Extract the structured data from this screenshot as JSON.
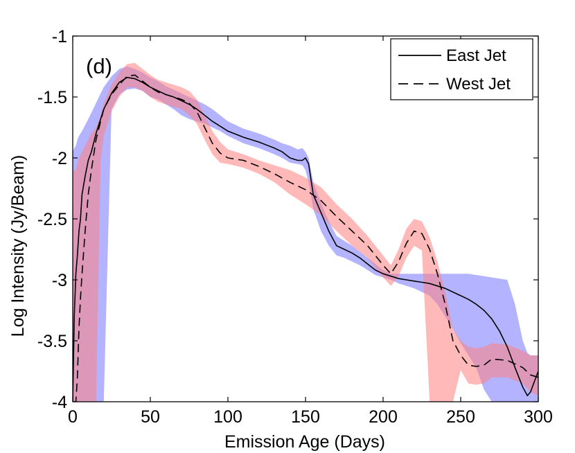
{
  "chart_data": {
    "type": "line",
    "panel_label": "(d)",
    "xlabel": "Emission Age (Days)",
    "ylabel": "Log Intensity (Jy/Beam)",
    "xlim": [
      0,
      300
    ],
    "ylim": [
      -4,
      -1
    ],
    "xticks": [
      0,
      50,
      100,
      150,
      200,
      250,
      300
    ],
    "xtick_labels": [
      "0",
      "50",
      "100",
      "150",
      "200",
      "250",
      "300"
    ],
    "yticks": [
      -4,
      -3.5,
      -3,
      -2.5,
      -2,
      -1.5,
      -1
    ],
    "ytick_labels": [
      "-4",
      "-3.5",
      "-3",
      "-2.5",
      "-2",
      "-1.5",
      "-1"
    ],
    "grid": false,
    "legend_position": "top-right",
    "series": [
      {
        "name": "East Jet",
        "line_style": "solid",
        "line_color": "#000000",
        "band_color": "#8080ff",
        "x": [
          0,
          1,
          2,
          3,
          4,
          5,
          6,
          8,
          10,
          12,
          15,
          18,
          20,
          25,
          30,
          35,
          40,
          45,
          50,
          55,
          60,
          65,
          70,
          75,
          80,
          85,
          90,
          95,
          100,
          110,
          120,
          130,
          135,
          140,
          145,
          148,
          150,
          152,
          155,
          160,
          165,
          170,
          175,
          180,
          185,
          190,
          195,
          200,
          205,
          210,
          215,
          220,
          225,
          230,
          235,
          240,
          245,
          250,
          255,
          260,
          265,
          270,
          275,
          280,
          285,
          290,
          293,
          295,
          297,
          300
        ],
        "values": [
          -4,
          -3.3,
          -2.95,
          -2.8,
          -2.6,
          -2.5,
          -2.3,
          -2.15,
          -2.02,
          -1.95,
          -1.8,
          -1.68,
          -1.6,
          -1.47,
          -1.38,
          -1.34,
          -1.35,
          -1.38,
          -1.42,
          -1.45,
          -1.48,
          -1.5,
          -1.53,
          -1.56,
          -1.6,
          -1.65,
          -1.7,
          -1.74,
          -1.78,
          -1.83,
          -1.87,
          -1.92,
          -1.95,
          -2.0,
          -2.02,
          -2.02,
          -2.0,
          -2.05,
          -2.3,
          -2.45,
          -2.6,
          -2.72,
          -2.75,
          -2.78,
          -2.82,
          -2.87,
          -2.92,
          -2.95,
          -2.97,
          -2.99,
          -3.0,
          -3.01,
          -3.02,
          -3.03,
          -3.05,
          -3.07,
          -3.1,
          -3.13,
          -3.16,
          -3.2,
          -3.25,
          -3.32,
          -3.42,
          -3.55,
          -3.72,
          -3.88,
          -3.95,
          -3.92,
          -3.85,
          -3.75
        ],
        "band_upper": [
          -1.95,
          -1.92,
          -1.9,
          -1.85,
          -1.82,
          -1.8,
          -1.78,
          -1.73,
          -1.68,
          -1.63,
          -1.55,
          -1.47,
          -1.42,
          -1.33,
          -1.27,
          -1.25,
          -1.27,
          -1.3,
          -1.34,
          -1.37,
          -1.41,
          -1.44,
          -1.47,
          -1.5,
          -1.53,
          -1.56,
          -1.6,
          -1.65,
          -1.7,
          -1.76,
          -1.8,
          -1.85,
          -1.88,
          -1.9,
          -1.93,
          -1.92,
          -1.95,
          -2.0,
          -2.2,
          -2.37,
          -2.52,
          -2.64,
          -2.68,
          -2.72,
          -2.77,
          -2.82,
          -2.87,
          -2.92,
          -2.95,
          -2.95,
          -2.95,
          -2.95,
          -2.95,
          -2.95,
          -2.95,
          -2.95,
          -2.95,
          -2.95,
          -2.95,
          -2.96,
          -2.97,
          -2.98,
          -2.99,
          -3.0,
          -3.2,
          -3.5,
          -3.6,
          -3.62,
          -3.62,
          -3.62
        ],
        "band_lower": [
          -4,
          -4,
          -4,
          -4,
          -4,
          -4,
          -4,
          -4,
          -4,
          -4,
          -4,
          -4,
          -4,
          -1.6,
          -1.48,
          -1.44,
          -1.43,
          -1.45,
          -1.5,
          -1.52,
          -1.56,
          -1.6,
          -1.65,
          -1.68,
          -1.7,
          -1.72,
          -1.75,
          -1.78,
          -1.82,
          -1.88,
          -1.92,
          -1.97,
          -2.0,
          -2.04,
          -2.05,
          -2.06,
          -2.1,
          -2.2,
          -2.42,
          -2.6,
          -2.72,
          -2.8,
          -2.82,
          -2.85,
          -2.88,
          -2.92,
          -2.96,
          -2.98,
          -3.0,
          -3.03,
          -3.05,
          -3.07,
          -3.1,
          -3.13,
          -3.2,
          -3.3,
          -3.4,
          -3.52,
          -3.62,
          -3.72,
          -3.9,
          -4,
          -4,
          -4,
          -4,
          -4,
          -4,
          -4,
          -4,
          -4
        ]
      },
      {
        "name": "West Jet",
        "line_style": "dashed",
        "line_color": "#000000",
        "band_color": "#ff8080",
        "x": [
          0,
          2,
          3,
          4,
          5,
          6,
          8,
          10,
          12,
          15,
          18,
          20,
          25,
          30,
          35,
          40,
          45,
          50,
          55,
          60,
          65,
          70,
          75,
          80,
          85,
          90,
          95,
          100,
          110,
          120,
          130,
          140,
          150,
          160,
          170,
          180,
          190,
          200,
          205,
          210,
          215,
          220,
          225,
          230,
          235,
          240,
          245,
          250,
          255,
          260,
          265,
          270,
          280,
          290,
          295,
          300
        ],
        "values": [
          -4,
          -4,
          -3.8,
          -3.4,
          -3.15,
          -2.95,
          -2.6,
          -2.3,
          -2.1,
          -1.85,
          -1.7,
          -1.6,
          -1.48,
          -1.4,
          -1.33,
          -1.32,
          -1.37,
          -1.42,
          -1.46,
          -1.48,
          -1.5,
          -1.52,
          -1.55,
          -1.62,
          -1.75,
          -1.88,
          -1.96,
          -2.0,
          -2.02,
          -2.07,
          -2.13,
          -2.2,
          -2.26,
          -2.35,
          -2.48,
          -2.6,
          -2.72,
          -2.88,
          -2.95,
          -2.85,
          -2.7,
          -2.6,
          -2.62,
          -2.75,
          -2.95,
          -3.2,
          -3.5,
          -3.62,
          -3.7,
          -3.71,
          -3.7,
          -3.65,
          -3.66,
          -3.72,
          -3.78,
          -3.8
        ],
        "band_upper": [
          -2.1,
          -2.1,
          -2.05,
          -2.0,
          -1.98,
          -1.95,
          -1.9,
          -1.85,
          -1.8,
          -1.75,
          -1.65,
          -1.55,
          -1.4,
          -1.3,
          -1.23,
          -1.22,
          -1.27,
          -1.32,
          -1.36,
          -1.38,
          -1.4,
          -1.42,
          -1.45,
          -1.52,
          -1.65,
          -1.78,
          -1.87,
          -1.93,
          -1.97,
          -2.02,
          -2.06,
          -2.1,
          -2.16,
          -2.24,
          -2.38,
          -2.5,
          -2.64,
          -2.8,
          -2.88,
          -2.75,
          -2.58,
          -2.5,
          -2.52,
          -2.65,
          -2.85,
          -3.1,
          -3.4,
          -3.5,
          -3.55,
          -3.56,
          -3.55,
          -3.52,
          -3.53,
          -3.58,
          -3.62,
          -3.62
        ],
        "band_lower": [
          -4,
          -4,
          -4,
          -4,
          -4,
          -4,
          -4,
          -4,
          -4,
          -4,
          -2.02,
          -1.82,
          -1.62,
          -1.5,
          -1.42,
          -1.42,
          -1.45,
          -1.5,
          -1.54,
          -1.56,
          -1.58,
          -1.6,
          -1.65,
          -1.72,
          -1.85,
          -1.97,
          -2.04,
          -2.05,
          -2.08,
          -2.13,
          -2.2,
          -2.3,
          -2.38,
          -2.47,
          -2.6,
          -2.72,
          -2.82,
          -2.98,
          -3.05,
          -2.97,
          -2.82,
          -2.72,
          -2.76,
          -4,
          -4,
          -4,
          -4,
          -3.74,
          -3.85,
          -3.86,
          -3.85,
          -3.8,
          -3.8,
          -3.85,
          -3.92,
          -3.95
        ]
      }
    ]
  }
}
